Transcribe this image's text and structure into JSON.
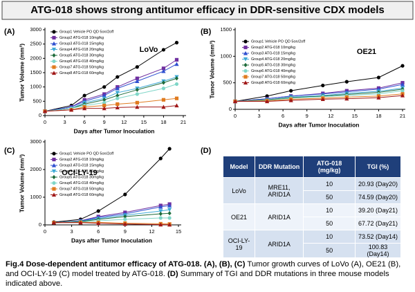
{
  "header": {
    "title": "ATG-018 shows strong antitumor efficacy in DDR-sensitive CDX models"
  },
  "chart_data": [
    {
      "type": "line",
      "panel": "(A)",
      "annotation": "LoVo",
      "x_label": "Days after Tumor Inoculation",
      "y_label": "Tumor Volume (mm³)",
      "x": [
        0,
        4,
        6,
        9,
        11,
        14,
        18,
        20
      ],
      "xlim": [
        0,
        21
      ],
      "xticks": [
        0,
        3,
        6,
        9,
        12,
        15,
        18,
        21
      ],
      "ylim": [
        0,
        3000
      ],
      "yticks": [
        0,
        500,
        1000,
        1500,
        2000,
        2500,
        3000
      ],
      "series": [
        {
          "name": "Group1 Vehicle PO QD 5on/2off",
          "color": "#000000",
          "marker": "circle",
          "values": [
            150,
            350,
            700,
            1000,
            1350,
            1700,
            2300,
            2550
          ]
        },
        {
          "name": "Group2 ATG-018 10mg/kg",
          "color": "#7030a0",
          "marker": "square",
          "values": [
            150,
            300,
            550,
            750,
            1000,
            1300,
            1650,
            1950
          ]
        },
        {
          "name": "Group3 ATG-018 15mg/kg",
          "color": "#2f4fd0",
          "marker": "triangle",
          "values": [
            150,
            300,
            500,
            700,
            950,
            1200,
            1550,
            1800
          ]
        },
        {
          "name": "Group4 ATG-018 20mg/kg",
          "color": "#3fa9d6",
          "marker": "triangle-down",
          "values": [
            150,
            250,
            450,
            600,
            800,
            950,
            1200,
            1350
          ]
        },
        {
          "name": "Group5 ATG-018 30mg/kg",
          "color": "#1e6b3a",
          "marker": "diamond",
          "values": [
            150,
            250,
            400,
            550,
            700,
            900,
            1150,
            1300
          ]
        },
        {
          "name": "Group6 ATG-018 40mg/kg",
          "color": "#7fd6c8",
          "marker": "circle",
          "values": [
            150,
            250,
            350,
            450,
            600,
            750,
            950,
            1100
          ]
        },
        {
          "name": "Group7 ATG-018 50mg/kg",
          "color": "#e07b20",
          "marker": "square",
          "values": [
            150,
            200,
            300,
            350,
            400,
            450,
            550,
            600
          ]
        },
        {
          "name": "Group8 ATG-018 60mg/kg",
          "color": "#a01818",
          "marker": "triangle",
          "values": [
            150,
            200,
            250,
            250,
            280,
            300,
            300,
            350
          ]
        }
      ]
    },
    {
      "type": "line",
      "panel": "(B)",
      "annotation": "OE21",
      "x_label": "Days after Tumor Inoculation",
      "y_label": "Tumor Volume (mm³)",
      "x": [
        0,
        4,
        7,
        11,
        14,
        18,
        21
      ],
      "xlim": [
        0,
        21
      ],
      "xticks": [
        0,
        3,
        6,
        9,
        12,
        15,
        18,
        21
      ],
      "ylim": [
        0,
        1500
      ],
      "yticks": [
        0,
        500,
        1000,
        1500
      ],
      "series": [
        {
          "name": "Group1 Vehicle PO QD 5on/2off",
          "color": "#000000",
          "marker": "circle",
          "values": [
            150,
            250,
            350,
            450,
            520,
            600,
            820
          ]
        },
        {
          "name": "Group2 ATG-018 10mg/kg",
          "color": "#7030a0",
          "marker": "square",
          "values": [
            150,
            200,
            250,
            300,
            350,
            400,
            500
          ]
        },
        {
          "name": "Group3 ATG-018 15mg/kg",
          "color": "#2f4fd0",
          "marker": "triangle",
          "values": [
            150,
            200,
            250,
            290,
            330,
            380,
            470
          ]
        },
        {
          "name": "Group4 ATG-018 20mg/kg",
          "color": "#3fa9d6",
          "marker": "triangle-down",
          "values": [
            150,
            180,
            230,
            260,
            300,
            340,
            400
          ]
        },
        {
          "name": "Group5 ATG-018 30mg/kg",
          "color": "#1e6b3a",
          "marker": "diamond",
          "values": [
            150,
            180,
            220,
            250,
            280,
            320,
            380
          ]
        },
        {
          "name": "Group6 ATG-018 40mg/kg",
          "color": "#7fd6c8",
          "marker": "circle",
          "values": [
            150,
            170,
            210,
            240,
            260,
            290,
            350
          ]
        },
        {
          "name": "Group7 ATG-018 50mg/kg",
          "color": "#e07b20",
          "marker": "square",
          "values": [
            150,
            160,
            190,
            210,
            230,
            250,
            290
          ]
        },
        {
          "name": "Group8 ATG-018 60mg/kg",
          "color": "#a01818",
          "marker": "triangle",
          "values": [
            150,
            150,
            170,
            190,
            200,
            220,
            260
          ]
        }
      ]
    },
    {
      "type": "line",
      "panel": "(C)",
      "annotation": "OCI-LY-19",
      "x_label": "Days after Tumor Inoculation",
      "y_label": "Tumor Volume (mm³)",
      "x": [
        1,
        4,
        6,
        9,
        13,
        14
      ],
      "xlim": [
        0,
        15
      ],
      "xticks": [
        0,
        3,
        6,
        9,
        12,
        15
      ],
      "ylim": [
        0,
        3000
      ],
      "yticks": [
        0,
        1000,
        2000,
        3000
      ],
      "series": [
        {
          "name": "Group1 Vehicle PO QD 5on/2off",
          "color": "#000000",
          "marker": "circle",
          "values": [
            100,
            200,
            500,
            1100,
            2400,
            2750
          ]
        },
        {
          "name": "Group2 ATG-018 10mg/kg",
          "color": "#7030a0",
          "marker": "square",
          "values": [
            80,
            150,
            300,
            450,
            700,
            750
          ]
        },
        {
          "name": "Group3 ATG-018 15mg/kg",
          "color": "#2f4fd0",
          "marker": "triangle",
          "values": [
            80,
            140,
            270,
            400,
            650,
            700
          ]
        },
        {
          "name": "Group4 ATG-018 20mg/kg",
          "color": "#3fa9d6",
          "marker": "triangle-down",
          "values": [
            80,
            130,
            230,
            350,
            500,
            550
          ]
        },
        {
          "name": "Group5 ATG-018 30mg/kg",
          "color": "#1e6b3a",
          "marker": "diamond",
          "values": [
            80,
            120,
            200,
            300,
            400,
            420
          ]
        },
        {
          "name": "Group6 ATG-018 40mg/kg",
          "color": "#7fd6c8",
          "marker": "circle",
          "values": [
            80,
            100,
            150,
            200,
            250,
            250
          ]
        },
        {
          "name": "Group7 ATG-018 50mg/kg",
          "color": "#e07b20",
          "marker": "square",
          "values": [
            80,
            90,
            90,
            60,
            40,
            30
          ]
        },
        {
          "name": "Group8 ATG-018 60mg/kg",
          "color": "#a01818",
          "marker": "triangle",
          "values": [
            80,
            80,
            60,
            30,
            10,
            5
          ]
        }
      ]
    }
  ],
  "table": {
    "panel": "(D)",
    "header": [
      "Model",
      "DDR Mutation",
      "ATG-018 (mg/kg)",
      "TGI (%)"
    ],
    "groups": [
      {
        "model": "LoVo",
        "mutation": "MRE11, ARID1A",
        "rows": [
          [
            "10",
            "20.93 (Day20)"
          ],
          [
            "50",
            "74.59 (Day20)"
          ]
        ]
      },
      {
        "model": "OE21",
        "mutation": "ARID1A",
        "rows": [
          [
            "10",
            "39.20 (Day21)"
          ],
          [
            "50",
            "67.72 (Day21)"
          ]
        ]
      },
      {
        "model": "OCI-LY-19",
        "mutation": "ARID1A",
        "rows": [
          [
            "10",
            "73.52 (Day14)"
          ],
          [
            "50",
            "100.83 (Day14)"
          ]
        ]
      }
    ]
  },
  "caption": [
    {
      "text": "Fig.4 Dose-dependent antitumor efficacy of ATG-018. (A), (B), (C)",
      "bold": true
    },
    {
      "text": " Tumor growth curves of LoVo (A), OE21 (B), and OCI-LY-19 (C) model treated by ATG-018. ",
      "bold": false
    },
    {
      "text": "(D)",
      "bold": true
    },
    {
      "text": " Summary of TGI and DDR mutations in three mouse models indicated above.",
      "bold": false
    }
  ]
}
